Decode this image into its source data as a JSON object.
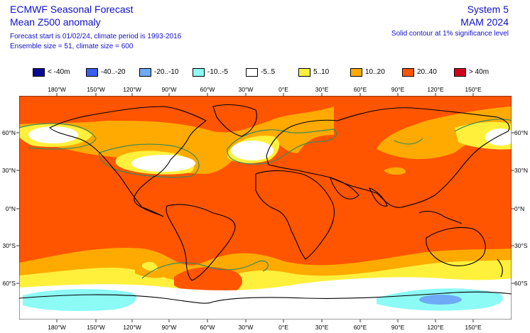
{
  "header": {
    "title": "ECMWF Seasonal Forecast",
    "subtitle": "Mean Z500 anomaly",
    "forecast_info": "Forecast start is 01/02/24, climate period is 1993-2016",
    "ensemble_info": "Ensemble size = 51, climate size = 600",
    "system": "System 5",
    "season": "MAM 2024",
    "significance_note": "Solid contour at 1% significance level"
  },
  "legend": [
    {
      "label": "< -40m",
      "color": "#0a0a96"
    },
    {
      "label": "-40..-20",
      "color": "#3c5ff0"
    },
    {
      "label": "-20..-10",
      "color": "#6eaaf5"
    },
    {
      "label": "-10..-5",
      "color": "#8cfaf5"
    },
    {
      "label": "-5..5",
      "color": "#ffffff"
    },
    {
      "label": "5..10",
      "color": "#fff03c"
    },
    {
      "label": "10..20",
      "color": "#ffaa00"
    },
    {
      "label": "20..40",
      "color": "#ff5500"
    },
    {
      "label": "> 40m",
      "color": "#d2001e"
    }
  ],
  "axes": {
    "lon_labels": [
      "180°W",
      "150°W",
      "120°W",
      "90°W",
      "60°W",
      "30°W",
      "0°E",
      "30°E",
      "60°E",
      "90°E",
      "120°E",
      "150°E"
    ],
    "lat_labels": [
      "60°N",
      "30°N",
      "0°N",
      "30°S",
      "60°S"
    ]
  },
  "colors": {
    "ocean_land_base": "#ff5500",
    "coast": "#000000",
    "significance_contour": "#3c8a5a"
  }
}
